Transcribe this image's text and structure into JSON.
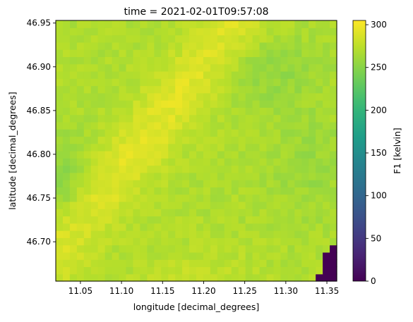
{
  "chart_data": {
    "type": "heatmap",
    "title": "time = 2021-02-01T09:57:08",
    "xlabel": "longitude [decimal_degrees]",
    "ylabel": "latitude [decimal_degrees]",
    "xlim": [
      11.02,
      11.362
    ],
    "ylim": [
      46.655,
      46.953
    ],
    "x_ticks": [
      11.05,
      11.1,
      11.15,
      11.2,
      11.25,
      11.3,
      11.35
    ],
    "x_tick_labels": [
      "11.05",
      "11.10",
      "11.15",
      "11.20",
      "11.25",
      "11.30",
      "11.35"
    ],
    "y_ticks": [
      46.7,
      46.75,
      46.8,
      46.85,
      46.9,
      46.95
    ],
    "y_tick_labels": [
      "46.70",
      "46.75",
      "46.80",
      "46.85",
      "46.90",
      "46.95"
    ],
    "colormap": "viridis",
    "colorbar": {
      "label": "F1 [kelvin]",
      "range": [
        0,
        305
      ],
      "ticks": [
        0,
        50,
        100,
        150,
        200,
        250,
        300
      ],
      "tick_labels": [
        "0",
        "50",
        "100",
        "150",
        "200",
        "250",
        "300"
      ]
    },
    "grid": false,
    "grid_shape": {
      "rows": 36,
      "cols": 40
    },
    "data_summary": {
      "typical_range": [
        240,
        300
      ],
      "warm_ridge": "diagonal band of ~290-300 K running from lower-left center toward upper center",
      "cooler_areas": "left edge near 46.74-46.77 (~245 K) and upper right near 11.27, 46.90 (~250 K)",
      "no_data_corner": "bottom-right corner near 11.34-11.36, 46.655-46.70 has values ~0 K"
    }
  }
}
